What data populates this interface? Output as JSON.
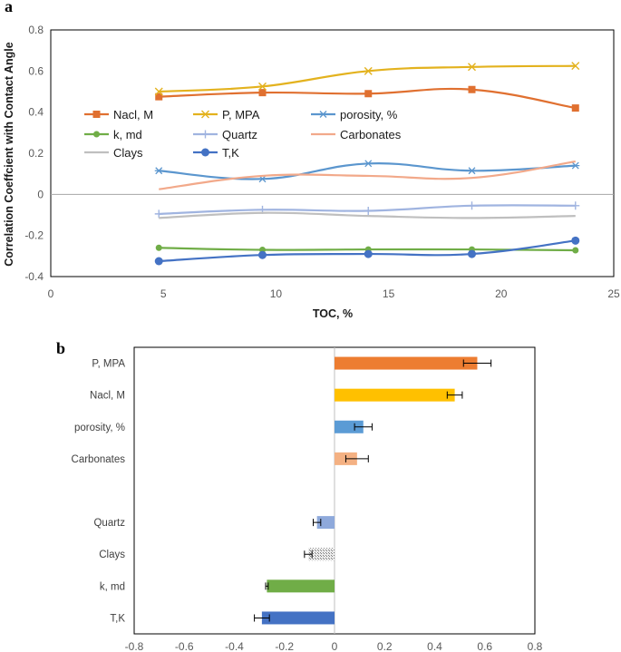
{
  "panel_a_label": "a",
  "panel_b_label": "b",
  "chart_data": [
    {
      "type": "line",
      "title": "",
      "xlabel": "TOC, %",
      "ylabel": "Correlation Coeffcient with Contact Angle",
      "xlim": [
        0,
        25
      ],
      "ylim": [
        -0.4,
        0.8
      ],
      "xticks": [
        "0",
        "5",
        "10",
        "15",
        "20",
        "25"
      ],
      "yticks": [
        "0.8",
        "0.6",
        "0.4",
        "0.2",
        "0",
        "-0.2",
        "-0.4"
      ],
      "x": [
        4.8,
        9.4,
        14.1,
        18.7,
        23.3
      ],
      "series": [
        {
          "name": "Nacl, M",
          "color": "#E07030",
          "marker": "square",
          "values": [
            0.475,
            0.495,
            0.49,
            0.51,
            0.42
          ]
        },
        {
          "name": "P, MPA",
          "color": "#E3B21E",
          "marker": "x",
          "values": [
            0.5,
            0.525,
            0.6,
            0.62,
            0.625
          ]
        },
        {
          "name": "porosity, %",
          "color": "#5B96CE",
          "marker": "star",
          "values": [
            0.115,
            0.075,
            0.15,
            0.115,
            0.14
          ]
        },
        {
          "name": "k, md",
          "color": "#70AD47",
          "marker": "circle-small",
          "values": [
            -0.26,
            -0.27,
            -0.268,
            -0.268,
            -0.272
          ]
        },
        {
          "name": "Quartz",
          "color": "#A0B4E0",
          "marker": "plus",
          "values": [
            -0.095,
            -0.075,
            -0.08,
            -0.055,
            -0.055
          ]
        },
        {
          "name": "Carbonates",
          "color": "#F2A98A",
          "marker": "none",
          "values": [
            0.025,
            0.09,
            0.09,
            0.08,
            0.16
          ]
        },
        {
          "name": "Clays",
          "color": "#BFBFBF",
          "marker": "none",
          "values": [
            -0.115,
            -0.09,
            -0.105,
            -0.115,
            -0.105
          ]
        },
        {
          "name": "T,K",
          "color": "#4472C4",
          "marker": "circle",
          "values": [
            -0.325,
            -0.295,
            -0.29,
            -0.29,
            -0.225
          ]
        }
      ]
    },
    {
      "type": "bar",
      "orientation": "horizontal",
      "xlim": [
        -0.8,
        0.8
      ],
      "xticks": [
        "-0.8",
        "-0.6",
        "-0.4",
        "-0.2",
        "0",
        "0.2",
        "0.4",
        "0.6",
        "0.8"
      ],
      "bars": [
        {
          "label": "P, MPA",
          "value": 0.57,
          "error": 0.055,
          "color": "#ED7D31",
          "pattern": "solid"
        },
        {
          "label": "Nacl, M",
          "value": 0.48,
          "error": 0.03,
          "color": "#FFC000",
          "pattern": "solid"
        },
        {
          "label": "porosity, %",
          "value": 0.115,
          "error": 0.035,
          "color": "#5B9BD5",
          "pattern": "solid"
        },
        {
          "label": "Carbonates",
          "value": 0.09,
          "error": 0.045,
          "color": "#F4B183",
          "pattern": "solid"
        },
        {
          "label": "",
          "value": null,
          "error": null,
          "color": "",
          "pattern": "gap"
        },
        {
          "label": "Quartz",
          "value": -0.07,
          "error": 0.015,
          "color": "#8EA9DB",
          "pattern": "solid"
        },
        {
          "label": "Clays",
          "value": -0.105,
          "error": 0.015,
          "color": "#A5A5A5",
          "pattern": "hatch"
        },
        {
          "label": "k, md",
          "value": -0.27,
          "error": 0.005,
          "color": "#70AD47",
          "pattern": "solid"
        },
        {
          "label": "T,K",
          "value": -0.29,
          "error": 0.03,
          "color": "#4472C4",
          "pattern": "solid"
        }
      ]
    }
  ]
}
